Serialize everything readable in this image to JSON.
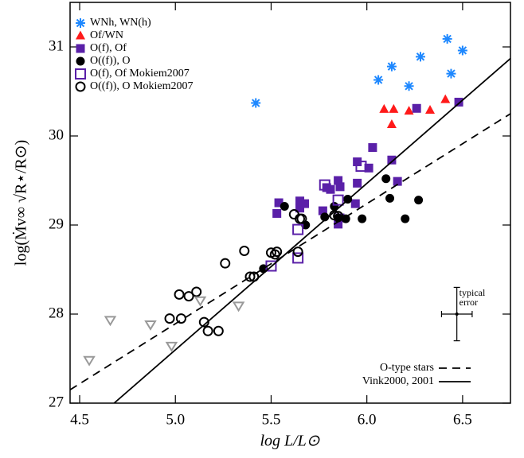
{
  "chart_data": {
    "type": "scatter",
    "x_label": "log L/L⊙",
    "y_label": "log(Ṁv∞ √R⋆/R⊙)",
    "xlim": [
      4.45,
      6.75
    ],
    "ylim": [
      27,
      31.5
    ],
    "xticks": [
      {
        "value": 4.5,
        "label": "4.5"
      },
      {
        "value": 5,
        "label": "5.0"
      },
      {
        "value": 5.5,
        "label": "5.5"
      },
      {
        "value": 6,
        "label": "6.0"
      },
      {
        "value": 6.5,
        "label": "6.5"
      }
    ],
    "yticks": [
      27,
      28,
      29,
      30,
      31
    ],
    "legend_loc": "upper left",
    "line_legend_loc": "lower right",
    "series": [
      {
        "name": "WNh, WN(h)",
        "marker": "asterisk",
        "color": "#1e88ff",
        "x": [
          5.42,
          6.06,
          6.13,
          6.22,
          6.28,
          6.42,
          6.44,
          6.5
        ],
        "values": [
          30.37,
          30.63,
          30.78,
          30.56,
          30.89,
          31.09,
          30.7,
          30.96
        ]
      },
      {
        "name": "Of/WN",
        "marker": "triangle",
        "color": "#ff1a1a",
        "x": [
          6.09,
          6.14,
          6.13,
          6.22,
          6.33,
          6.41
        ],
        "values": [
          30.3,
          30.3,
          30.13,
          30.28,
          30.29,
          30.41
        ]
      },
      {
        "name": "O(f), Of",
        "marker": "square",
        "color": "#5a20a8",
        "x": [
          5.54,
          5.53,
          5.65,
          5.65,
          5.675,
          5.77,
          5.79,
          5.81,
          5.85,
          5.86,
          5.85,
          5.86,
          5.94,
          5.95,
          5.95,
          6.01,
          6.03,
          6.13,
          6.16,
          6.26,
          6.48
        ],
        "values": [
          29.25,
          29.13,
          29.27,
          29.19,
          29.24,
          29.16,
          29.42,
          29.4,
          29.5,
          29.43,
          29.01,
          29.08,
          29.24,
          29.47,
          29.71,
          29.64,
          29.87,
          29.73,
          29.49,
          30.31,
          30.38
        ]
      },
      {
        "name": "O((f)), O",
        "marker": "circle",
        "color": "#000000",
        "x": [
          5.46,
          5.57,
          5.68,
          5.78,
          5.83,
          5.85,
          5.89,
          5.9,
          5.975,
          6.1,
          6.12,
          6.2,
          6.27
        ],
        "values": [
          28.51,
          29.21,
          29.0,
          29.09,
          29.21,
          29.08,
          29.07,
          29.29,
          29.07,
          29.52,
          29.3,
          29.07,
          29.28
        ]
      },
      {
        "name": "O(f), Of Mokiem2007",
        "marker": "open-square",
        "color": "#5a20a8",
        "x": [
          5.5,
          5.64,
          5.64,
          5.78,
          5.85,
          5.97
        ],
        "values": [
          28.54,
          28.63,
          28.95,
          29.45,
          29.28,
          29.66
        ]
      },
      {
        "name": "O((f)), O Mokiem2007",
        "marker": "open-circle",
        "color": "#000000",
        "x": [
          4.97,
          5.03,
          5.02,
          5.07,
          5.11,
          5.15,
          5.17,
          5.225,
          5.26,
          5.36,
          5.39,
          5.41,
          5.5,
          5.52,
          5.53,
          5.62,
          5.65,
          5.66,
          5.64,
          5.83,
          5.85
        ],
        "values": [
          27.95,
          27.95,
          28.22,
          28.2,
          28.25,
          27.91,
          27.81,
          27.81,
          28.57,
          28.71,
          28.42,
          28.42,
          28.69,
          28.67,
          28.7,
          29.12,
          29.07,
          29.07,
          28.7,
          29.11,
          29.1
        ]
      },
      {
        "marker": "triangle-down",
        "color": "#999999",
        "x": [
          4.55,
          4.66,
          4.87,
          4.98,
          5.13,
          5.33
        ],
        "values": [
          27.48,
          27.93,
          27.88,
          27.64,
          28.15,
          28.09
        ]
      },
      {
        "name": "O-type stars",
        "kind": "line",
        "dash": "dashed",
        "color": "#000000",
        "x": [
          4.45,
          6.75
        ],
        "values": [
          27.15,
          30.25
        ]
      },
      {
        "name": "Vink2000, 2001",
        "kind": "line",
        "dash": "solid",
        "color": "#000000",
        "x": [
          4.68,
          6.75
        ],
        "values": [
          27,
          30.87
        ]
      }
    ],
    "error_bar": {
      "label_lines": [
        "typical",
        "error"
      ],
      "x": 6.47,
      "y": 28.0,
      "xerr": 0.08,
      "yerr": 0.3
    }
  }
}
